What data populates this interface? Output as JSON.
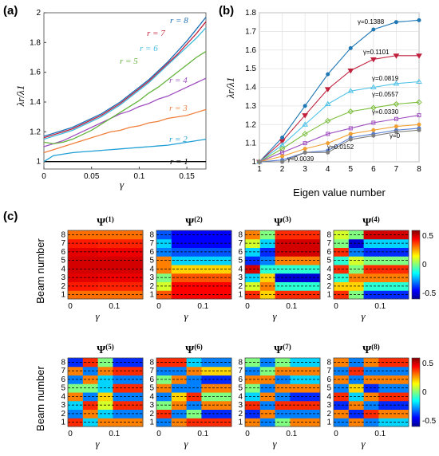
{
  "panels": {
    "a": "(a)",
    "b": "(b)",
    "c": "(c)"
  },
  "chart_data": [
    {
      "type": "line",
      "panel": "(a)",
      "xlabel": "γ",
      "ylabel": "λr/λ1",
      "xlim": [
        0,
        0.17
      ],
      "ylim": [
        0.95,
        2.0
      ],
      "xticks": [
        "0",
        "0.05",
        "0.1",
        "0.15"
      ],
      "yticks": [
        "1",
        "1.2",
        "1.4",
        "1.6",
        "1.8",
        "2"
      ],
      "grid": false,
      "x": [
        0,
        0.01,
        0.02,
        0.03,
        0.04,
        0.05,
        0.06,
        0.07,
        0.08,
        0.09,
        0.1,
        0.11,
        0.12,
        0.13,
        0.14,
        0.15,
        0.16,
        0.17
      ],
      "series": [
        {
          "name": "r = 1",
          "color": "#000000",
          "values": [
            1,
            1,
            1,
            1,
            1,
            1,
            1,
            1,
            1,
            1,
            1,
            1,
            1,
            1,
            1,
            1,
            1,
            1
          ]
        },
        {
          "name": "r = 2",
          "color": "#1f9fd6",
          "values": [
            1.0,
            1.04,
            1.05,
            1.06,
            1.065,
            1.07,
            1.075,
            1.08,
            1.085,
            1.09,
            1.095,
            1.1,
            1.105,
            1.11,
            1.12,
            1.13,
            1.14,
            1.15
          ]
        },
        {
          "name": "r = 3",
          "color": "#f07f3c",
          "values": [
            1.06,
            1.08,
            1.1,
            1.12,
            1.14,
            1.16,
            1.18,
            1.2,
            1.21,
            1.23,
            1.24,
            1.26,
            1.27,
            1.29,
            1.3,
            1.31,
            1.33,
            1.35
          ]
        },
        {
          "name": "r = 4",
          "color": "#a050c0",
          "values": [
            1.1,
            1.12,
            1.14,
            1.17,
            1.2,
            1.23,
            1.26,
            1.29,
            1.32,
            1.34,
            1.37,
            1.39,
            1.42,
            1.44,
            1.47,
            1.5,
            1.53,
            1.56
          ]
        },
        {
          "name": "r = 5",
          "color": "#63b33c",
          "values": [
            1.13,
            1.12,
            1.13,
            1.15,
            1.18,
            1.21,
            1.25,
            1.29,
            1.33,
            1.37,
            1.41,
            1.46,
            1.5,
            1.55,
            1.6,
            1.65,
            1.7,
            1.74
          ]
        },
        {
          "name": "r = 6",
          "color": "#3fbbe0",
          "values": [
            1.15,
            1.17,
            1.19,
            1.21,
            1.24,
            1.27,
            1.3,
            1.34,
            1.38,
            1.43,
            1.48,
            1.53,
            1.59,
            1.65,
            1.71,
            1.77,
            1.83,
            1.9
          ]
        },
        {
          "name": "r = 7",
          "color": "#c0203c",
          "values": [
            1.16,
            1.18,
            1.2,
            1.22,
            1.25,
            1.28,
            1.31,
            1.35,
            1.39,
            1.44,
            1.49,
            1.54,
            1.6,
            1.66,
            1.72,
            1.79,
            1.86,
            1.94
          ]
        },
        {
          "name": "r = 8",
          "color": "#1a70b8",
          "values": [
            1.17,
            1.19,
            1.21,
            1.23,
            1.26,
            1.29,
            1.32,
            1.36,
            1.4,
            1.45,
            1.5,
            1.55,
            1.61,
            1.67,
            1.74,
            1.81,
            1.89,
            1.97
          ]
        }
      ]
    },
    {
      "type": "line",
      "panel": "(b)",
      "xlabel": "Eigen value number",
      "ylabel": "λr/λ1",
      "xlim": [
        1,
        8
      ],
      "ylim": [
        1.0,
        1.8
      ],
      "xticks": [
        "1",
        "2",
        "3",
        "4",
        "5",
        "6",
        "7",
        "8"
      ],
      "yticks": [
        "1",
        "1.1",
        "1.2",
        "1.3",
        "1.4",
        "1.5",
        "1.6",
        "1.7",
        "1.8"
      ],
      "grid": true,
      "categories": [
        1,
        2,
        3,
        4,
        5,
        6,
        7,
        8
      ],
      "series": [
        {
          "name": "γ=0.1388",
          "color": "#1f77b4",
          "marker": "circle",
          "values": [
            1.0,
            1.13,
            1.3,
            1.47,
            1.61,
            1.71,
            1.75,
            1.76
          ]
        },
        {
          "name": "γ=0.1101",
          "color": "#c0203c",
          "marker": "tri-down",
          "values": [
            1.0,
            1.11,
            1.25,
            1.39,
            1.49,
            1.55,
            1.57,
            1.57
          ]
        },
        {
          "name": "γ=0.0819",
          "color": "#4fc3e8",
          "marker": "tri-up",
          "values": [
            1.0,
            1.09,
            1.2,
            1.31,
            1.38,
            1.4,
            1.42,
            1.43
          ]
        },
        {
          "name": "γ=0.0557",
          "color": "#7cbf3c",
          "marker": "diamond",
          "values": [
            1.0,
            1.07,
            1.15,
            1.22,
            1.27,
            1.29,
            1.31,
            1.32
          ]
        },
        {
          "name": "γ=0.0330",
          "color": "#a050c0",
          "marker": "square",
          "values": [
            1.0,
            1.05,
            1.1,
            1.15,
            1.18,
            1.21,
            1.23,
            1.25
          ]
        },
        {
          "name": "γ=0.0152",
          "color": "#f0a030",
          "marker": "x",
          "values": [
            1.0,
            1.03,
            1.07,
            1.1,
            1.15,
            1.17,
            1.19,
            1.2
          ]
        },
        {
          "name": "γ=0.0039",
          "color": "#5a7fd0",
          "marker": "plus",
          "values": [
            1.0,
            1.01,
            1.05,
            1.06,
            1.13,
            1.15,
            1.17,
            1.18
          ]
        },
        {
          "name": "γ=0",
          "color": "#7f7f7f",
          "marker": "circle",
          "values": [
            1.0,
            1.0,
            1.05,
            1.05,
            1.12,
            1.14,
            1.16,
            1.17
          ]
        }
      ]
    },
    {
      "type": "heatmap",
      "panel": "(c)",
      "ylabel": "Beam number",
      "xlabel": "γ",
      "xticks": [
        "0",
        "0.1"
      ],
      "yticks": [
        "1",
        "2",
        "3",
        "4",
        "5",
        "6",
        "7",
        "8"
      ],
      "colorbar_ticks": [
        "0.5",
        "0",
        "-0.5"
      ],
      "colorbar_range": [
        -0.6,
        0.6
      ],
      "maps": [
        {
          "title": "Ψ(1)",
          "sup": "(1)",
          "values": [
            [
              0.32,
              0.32,
              0.32,
              0.32,
              0.32
            ],
            [
              0.42,
              0.42,
              0.41,
              0.41,
              0.41
            ],
            [
              0.48,
              0.48,
              0.47,
              0.47,
              0.47
            ],
            [
              0.5,
              0.5,
              0.5,
              0.5,
              0.5
            ],
            [
              0.5,
              0.5,
              0.5,
              0.5,
              0.5
            ],
            [
              0.48,
              0.48,
              0.47,
              0.47,
              0.47
            ],
            [
              0.42,
              0.42,
              0.41,
              0.41,
              0.41
            ],
            [
              0.32,
              0.32,
              0.32,
              0.32,
              0.32
            ]
          ]
        },
        {
          "title": "Ψ(2)",
          "sup": "(2)",
          "values": [
            [
              0.35,
              0.45,
              0.45,
              0.45,
              0.45
            ],
            [
              0.1,
              0.45,
              0.45,
              0.45,
              0.45
            ],
            [
              0.0,
              0.35,
              0.35,
              0.35,
              0.35
            ],
            [
              0.3,
              0.2,
              0.2,
              0.2,
              0.2
            ],
            [
              0.3,
              -0.2,
              -0.2,
              -0.2,
              -0.2
            ],
            [
              -0.3,
              -0.35,
              -0.35,
              -0.35,
              -0.35
            ],
            [
              -0.2,
              -0.45,
              -0.45,
              -0.45,
              -0.45
            ],
            [
              -0.35,
              -0.45,
              -0.45,
              -0.45,
              -0.45
            ]
          ]
        },
        {
          "title": "Ψ(3)",
          "sup": "(3)",
          "values": [
            [
              0.4,
              0.2,
              0.4,
              0.4,
              0.4
            ],
            [
              0.1,
              0.3,
              -0.1,
              -0.1,
              -0.1
            ],
            [
              -0.2,
              0.2,
              -0.5,
              -0.5,
              -0.5
            ],
            [
              0.5,
              -0.1,
              -0.1,
              -0.1,
              -0.1
            ],
            [
              -0.4,
              -0.3,
              0.3,
              0.3,
              0.3
            ],
            [
              -0.2,
              -0.4,
              0.5,
              0.5,
              0.5
            ],
            [
              0.1,
              -0.2,
              0.5,
              0.5,
              0.5
            ],
            [
              0.3,
              0.0,
              0.4,
              0.4,
              0.4
            ]
          ]
        },
        {
          "title": "Ψ(4)",
          "sup": "(4)",
          "values": [
            [
              0.4,
              0.0,
              -0.4,
              -0.4,
              -0.4
            ],
            [
              0.2,
              0.2,
              -0.1,
              -0.1,
              -0.1
            ],
            [
              -0.1,
              0.3,
              0.3,
              0.3,
              0.3
            ],
            [
              0.4,
              0.0,
              0.4,
              0.4,
              0.4
            ],
            [
              -0.1,
              0.1,
              0.0,
              0.0,
              0.0
            ],
            [
              0.4,
              -0.3,
              -0.4,
              -0.4,
              -0.4
            ],
            [
              0.0,
              -0.5,
              -0.2,
              -0.2,
              -0.2
            ],
            [
              0.1,
              0.0,
              0.5,
              0.5,
              0.5
            ]
          ]
        },
        {
          "title": "Ψ(5)",
          "sup": "(5)",
          "values": [
            [
              0.4,
              -0.2,
              0.3,
              0.3,
              0.3
            ],
            [
              -0.3,
              0.3,
              -0.2,
              -0.3,
              -0.3
            ],
            [
              -0.2,
              0.4,
              0.1,
              0.4,
              0.4
            ],
            [
              0.3,
              -0.3,
              0.2,
              -0.3,
              -0.3
            ],
            [
              0.0,
              0.0,
              -0.2,
              0.4,
              0.4
            ],
            [
              -0.3,
              0.3,
              -0.2,
              -0.3,
              -0.3
            ],
            [
              0.3,
              -0.3,
              0.3,
              0.4,
              0.4
            ],
            [
              -0.4,
              0.4,
              0.0,
              -0.4,
              -0.4
            ]
          ]
        },
        {
          "title": "Ψ(6)",
          "sup": "(6)",
          "values": [
            [
              -0.3,
              0.3,
              0.4,
              0.4,
              0.4
            ],
            [
              0.4,
              -0.3,
              0.0,
              -0.4,
              -0.4
            ],
            [
              0.0,
              0.3,
              -0.3,
              0.3,
              0.3
            ],
            [
              -0.3,
              0.2,
              0.4,
              0.0,
              0.0
            ],
            [
              0.3,
              -0.3,
              -0.3,
              0.3,
              0.3
            ],
            [
              0.0,
              0.3,
              -0.3,
              -0.4,
              -0.4
            ],
            [
              -0.3,
              -0.3,
              0.3,
              0.2,
              0.2
            ],
            [
              0.4,
              0.4,
              -0.2,
              -0.3,
              -0.3
            ]
          ]
        },
        {
          "title": "Ψ(7)",
          "sup": "(7)",
          "values": [
            [
              0.3,
              -0.3,
              0.0,
              0.3,
              0.3
            ],
            [
              -0.4,
              0.3,
              -0.3,
              -0.3,
              -0.3
            ],
            [
              0.4,
              -0.3,
              0.4,
              0.4,
              0.4
            ],
            [
              -0.2,
              0.3,
              -0.3,
              -0.4,
              -0.4
            ],
            [
              0.0,
              -0.3,
              0.3,
              0.3,
              0.3
            ],
            [
              0.3,
              0.3,
              -0.3,
              -0.2,
              -0.2
            ],
            [
              -0.3,
              0.0,
              0.3,
              0.3,
              0.3
            ],
            [
              0.0,
              -0.3,
              0.0,
              -0.2,
              -0.2
            ]
          ]
        },
        {
          "title": "Ψ(8)",
          "sup": "(8)",
          "values": [
            [
              -0.3,
              0.3,
              -0.3,
              -0.2,
              -0.2
            ],
            [
              0.3,
              -0.4,
              0.4,
              0.3,
              0.3
            ],
            [
              -0.4,
              0.3,
              -0.3,
              -0.4,
              -0.4
            ],
            [
              0.4,
              -0.2,
              0.3,
              0.4,
              0.4
            ],
            [
              -0.3,
              0.2,
              -0.4,
              -0.3,
              -0.3
            ],
            [
              0.3,
              -0.3,
              0.3,
              0.3,
              0.3
            ],
            [
              -0.3,
              0.4,
              -0.3,
              -0.3,
              -0.3
            ],
            [
              0.3,
              -0.3,
              0.3,
              0.4,
              0.4
            ]
          ]
        }
      ]
    }
  ]
}
